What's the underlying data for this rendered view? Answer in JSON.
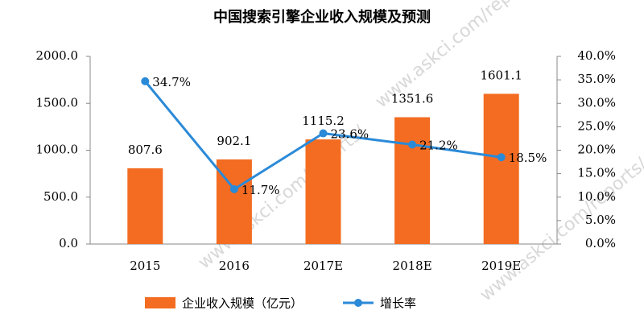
{
  "chart_data": {
    "type": "bar-line",
    "title": "中国搜索引擎企业收入规模及预测",
    "watermark": "www.askci.com/reports/",
    "categories": [
      "2015",
      "2016",
      "2017E",
      "2018E",
      "2019E"
    ],
    "series": [
      {
        "name": "企业收入规模（亿元）",
        "type": "bar",
        "color": "#f36c21",
        "values": [
          807.6,
          902.1,
          1115.2,
          1351.6,
          1601.1
        ]
      },
      {
        "name": "增长率",
        "type": "line",
        "axis": "y2",
        "color": "#2b8ad8",
        "values": [
          34.7,
          11.7,
          23.6,
          21.2,
          18.5
        ],
        "value_labels": [
          "34.7%",
          "11.7%",
          "23.6%",
          "21.2%",
          "18.5%"
        ]
      }
    ],
    "ylim": [
      0,
      2000
    ],
    "yticks": [
      {
        "value": 0,
        "label": "0.0"
      },
      {
        "value": 500,
        "label": "500.0"
      },
      {
        "value": 1000,
        "label": "1000.0"
      },
      {
        "value": 1500,
        "label": "1500.0"
      },
      {
        "value": 2000,
        "label": "2000.0"
      }
    ],
    "y2lim": [
      0,
      40
    ],
    "y2ticks": [
      {
        "value": 0,
        "label": "0.0%"
      },
      {
        "value": 5,
        "label": "5.0%"
      },
      {
        "value": 10,
        "label": "10.0%"
      },
      {
        "value": 15,
        "label": "15.0%"
      },
      {
        "value": 20,
        "label": "20.0%"
      },
      {
        "value": 25,
        "label": "25.0%"
      },
      {
        "value": 30,
        "label": "30.0%"
      },
      {
        "value": 35,
        "label": "35.0%"
      },
      {
        "value": 40,
        "label": "40.0%"
      }
    ],
    "legend": "bottom"
  }
}
